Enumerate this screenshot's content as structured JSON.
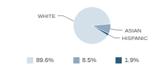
{
  "chart_data": {
    "type": "pie",
    "categories": [
      "WHITE",
      "ASIAN",
      "HISPANIC"
    ],
    "values": [
      89.6,
      8.5,
      1.9
    ],
    "value_labels": [
      "89.6%",
      "8.5%",
      "1.9%"
    ],
    "colors": [
      "#d3dfe9",
      "#8ea9c0",
      "#2b5b7d"
    ]
  }
}
